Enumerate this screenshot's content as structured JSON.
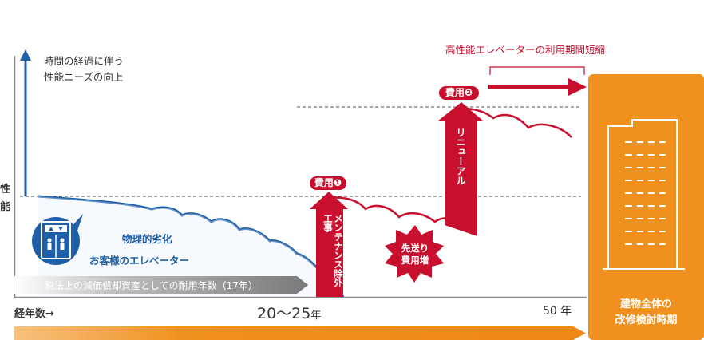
{
  "colors": {
    "red": "#c8102e",
    "blue": "#1f5fa8",
    "orange": "#f0901e",
    "gray": "#8a8a8a"
  },
  "axis": {
    "y_label_1": "性",
    "y_label_2": "能",
    "x_label": "経年数→",
    "tick_mid": "20〜25",
    "tick_mid_unit": "年",
    "tick_end": "50 年"
  },
  "needs": {
    "line1": "時間の経過に伴う",
    "line2": "性能ニーズの向上"
  },
  "elevator": {
    "icon": "elevator-icon",
    "degradation": "物理的劣化",
    "label": "お客様のエレベーター"
  },
  "depreciation_bar": "税法上の減価償却資産としての耐用年数（17年）",
  "cost1": {
    "label": "費用",
    "num": "❶",
    "arrow_text": "メンテナンス除外工事"
  },
  "cost2": {
    "label": "費用",
    "num": "❷",
    "arrow_text": "リニューアル"
  },
  "deferred": {
    "line1": "先送り",
    "line2": "費用増"
  },
  "extension_label": "高性能エレベーターの利用期間短縮",
  "building_panel": {
    "icon": "building-icon",
    "line1": "建物全体の",
    "line2": "改修検討時期"
  }
}
